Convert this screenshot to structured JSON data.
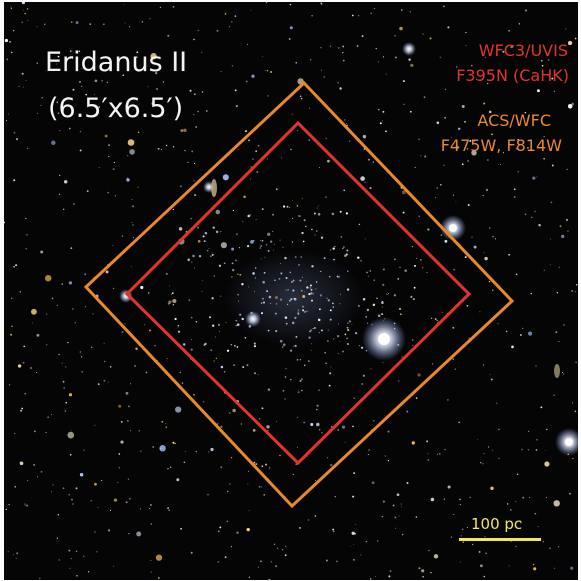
{
  "image": {
    "title": "Eridanus II",
    "field_of_view": "(6.5′x6.5′)",
    "background_color": "#050506"
  },
  "footprints": [
    {
      "name": "wfc3",
      "instrument": "WFC3/UVIS",
      "filters": "F395N (CaHK)",
      "color": "#e0352b"
    },
    {
      "name": "acs",
      "instrument": "ACS/WFC",
      "filters": "F475W, F814W",
      "color": "#e8892a"
    }
  ],
  "scale_bar": {
    "label": "100 pc",
    "color": "#f2e85a"
  }
}
